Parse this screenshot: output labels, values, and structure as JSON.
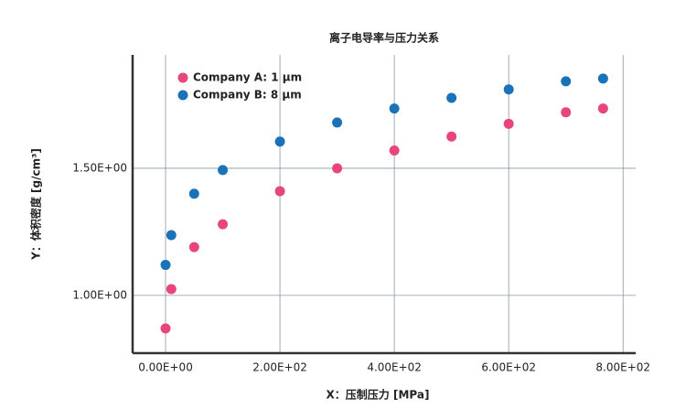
{
  "chart_data": {
    "type": "scatter",
    "title": "离子电导率与压力关系",
    "x_label": "X：压制压力 [MPa]",
    "y_label": "Y：体积密度 [g/cm³]",
    "xlim": [
      -57.6,
      822
    ],
    "ylim": [
      0.773,
      1.946
    ],
    "xticks": [
      {
        "value": 0,
        "label": "0.00E+00"
      },
      {
        "value": 200,
        "label": "2.00E+02"
      },
      {
        "value": 400,
        "label": "4.00E+02"
      },
      {
        "value": 600,
        "label": "6.00E+02"
      },
      {
        "value": 800,
        "label": "8.00E+02"
      }
    ],
    "yticks": [
      {
        "value": 1,
        "label": "1.00E+00"
      },
      {
        "value": 1.5,
        "label": "1.50E+00"
      }
    ],
    "grid": true,
    "legend": "upper left",
    "series": [
      {
        "name": "Company A: 1 μm",
        "color": "#e8457c",
        "x": [
          0,
          10,
          50,
          100,
          200,
          300,
          400,
          500,
          600,
          700,
          765
        ],
        "values": [
          0.87,
          1.025,
          1.19,
          1.28,
          1.41,
          1.5,
          1.57,
          1.625,
          1.675,
          1.72,
          1.735
        ]
      },
      {
        "name": "Company B: 8 μm",
        "color": "#1a73b8",
        "x": [
          0,
          10,
          50,
          100,
          200,
          300,
          400,
          500,
          600,
          700,
          765
        ],
        "values": [
          1.12,
          1.237,
          1.4,
          1.493,
          1.605,
          1.68,
          1.735,
          1.777,
          1.81,
          1.842,
          1.853
        ]
      }
    ]
  }
}
